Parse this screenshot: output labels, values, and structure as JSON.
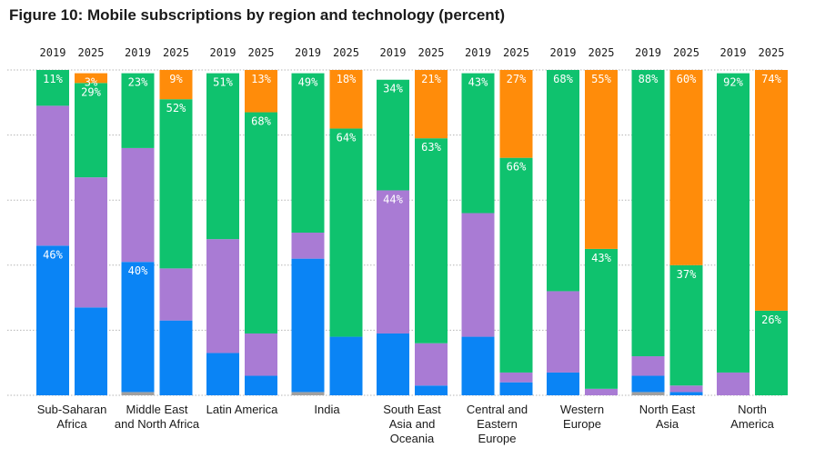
{
  "chart_data": {
    "type": "bar",
    "stacked": true,
    "title": "Figure 10: Mobile subscriptions by region and technology (percent)",
    "ylim": [
      0,
      100
    ],
    "grid": true,
    "legend": "none",
    "stack_order_bottom_to_top": [
      "grey",
      "blue",
      "purple",
      "green",
      "orange"
    ],
    "colors": {
      "grey": "#a0a0a0",
      "blue": "#0a84f5",
      "purple": "#a97bd4",
      "green": "#0fc26e",
      "orange": "#ff8c0a"
    },
    "regions": [
      {
        "label_lines": [
          "Sub-Saharan",
          "Africa"
        ],
        "bars": [
          {
            "year": "2019",
            "segments": [
              {
                "tech": "blue",
                "value": 46,
                "label": "46%"
              },
              {
                "tech": "purple",
                "value": 43
              },
              {
                "tech": "green",
                "value": 11,
                "label": "11%"
              }
            ]
          },
          {
            "year": "2025",
            "segments": [
              {
                "tech": "blue",
                "value": 27
              },
              {
                "tech": "purple",
                "value": 40
              },
              {
                "tech": "green",
                "value": 29,
                "label": "29%"
              },
              {
                "tech": "orange",
                "value": 3,
                "label": "3%"
              }
            ]
          }
        ]
      },
      {
        "label_lines": [
          "Middle East",
          "and North Africa"
        ],
        "bars": [
          {
            "year": "2019",
            "segments": [
              {
                "tech": "grey",
                "value": 1
              },
              {
                "tech": "blue",
                "value": 40,
                "label": "40%"
              },
              {
                "tech": "purple",
                "value": 35
              },
              {
                "tech": "green",
                "value": 23,
                "label": "23%"
              }
            ]
          },
          {
            "year": "2025",
            "segments": [
              {
                "tech": "blue",
                "value": 23
              },
              {
                "tech": "purple",
                "value": 16
              },
              {
                "tech": "green",
                "value": 52,
                "label": "52%"
              },
              {
                "tech": "orange",
                "value": 9,
                "label": "9%"
              }
            ]
          }
        ]
      },
      {
        "label_lines": [
          "Latin America"
        ],
        "bars": [
          {
            "year": "2019",
            "segments": [
              {
                "tech": "blue",
                "value": 13
              },
              {
                "tech": "purple",
                "value": 35
              },
              {
                "tech": "green",
                "value": 51,
                "label": "51%"
              }
            ]
          },
          {
            "year": "2025",
            "segments": [
              {
                "tech": "blue",
                "value": 6
              },
              {
                "tech": "purple",
                "value": 13
              },
              {
                "tech": "green",
                "value": 68,
                "label": "68%"
              },
              {
                "tech": "orange",
                "value": 13,
                "label": "13%"
              }
            ]
          }
        ]
      },
      {
        "label_lines": [
          "India"
        ],
        "bars": [
          {
            "year": "2019",
            "segments": [
              {
                "tech": "grey",
                "value": 1
              },
              {
                "tech": "blue",
                "value": 41
              },
              {
                "tech": "purple",
                "value": 8
              },
              {
                "tech": "green",
                "value": 49,
                "label": "49%"
              }
            ]
          },
          {
            "year": "2025",
            "segments": [
              {
                "tech": "blue",
                "value": 18
              },
              {
                "tech": "green",
                "value": 64,
                "label": "64%"
              },
              {
                "tech": "orange",
                "value": 18,
                "label": "18%"
              }
            ]
          }
        ]
      },
      {
        "label_lines": [
          "South East",
          "Asia and",
          "Oceania"
        ],
        "bars": [
          {
            "year": "2019",
            "segments": [
              {
                "tech": "blue",
                "value": 19
              },
              {
                "tech": "purple",
                "value": 44,
                "label": "44%"
              },
              {
                "tech": "green",
                "value": 34,
                "label": "34%"
              }
            ]
          },
          {
            "year": "2025",
            "segments": [
              {
                "tech": "blue",
                "value": 3
              },
              {
                "tech": "purple",
                "value": 13
              },
              {
                "tech": "green",
                "value": 63,
                "label": "63%"
              },
              {
                "tech": "orange",
                "value": 21,
                "label": "21%"
              }
            ]
          }
        ]
      },
      {
        "label_lines": [
          "Central and",
          "Eastern",
          "Europe"
        ],
        "bars": [
          {
            "year": "2019",
            "segments": [
              {
                "tech": "blue",
                "value": 18
              },
              {
                "tech": "purple",
                "value": 38
              },
              {
                "tech": "green",
                "value": 43,
                "label": "43%"
              }
            ]
          },
          {
            "year": "2025",
            "segments": [
              {
                "tech": "blue",
                "value": 4
              },
              {
                "tech": "purple",
                "value": 3
              },
              {
                "tech": "green",
                "value": 66,
                "label": "66%"
              },
              {
                "tech": "orange",
                "value": 27,
                "label": "27%"
              }
            ]
          }
        ]
      },
      {
        "label_lines": [
          "Western",
          "Europe"
        ],
        "bars": [
          {
            "year": "2019",
            "segments": [
              {
                "tech": "blue",
                "value": 7
              },
              {
                "tech": "purple",
                "value": 25
              },
              {
                "tech": "green",
                "value": 68,
                "label": "68%"
              }
            ]
          },
          {
            "year": "2025",
            "segments": [
              {
                "tech": "purple",
                "value": 2
              },
              {
                "tech": "green",
                "value": 43,
                "label": "43%"
              },
              {
                "tech": "orange",
                "value": 55,
                "label": "55%"
              }
            ]
          }
        ]
      },
      {
        "label_lines": [
          "North East",
          "Asia"
        ],
        "bars": [
          {
            "year": "2019",
            "segments": [
              {
                "tech": "grey",
                "value": 1
              },
              {
                "tech": "blue",
                "value": 5
              },
              {
                "tech": "purple",
                "value": 6
              },
              {
                "tech": "green",
                "value": 88,
                "label": "88%"
              }
            ]
          },
          {
            "year": "2025",
            "segments": [
              {
                "tech": "blue",
                "value": 1
              },
              {
                "tech": "purple",
                "value": 2
              },
              {
                "tech": "green",
                "value": 37,
                "label": "37%"
              },
              {
                "tech": "orange",
                "value": 60,
                "label": "60%"
              }
            ]
          }
        ]
      },
      {
        "label_lines": [
          "North",
          "America"
        ],
        "bars": [
          {
            "year": "2019",
            "segments": [
              {
                "tech": "purple",
                "value": 7
              },
              {
                "tech": "green",
                "value": 92,
                "label": "92%"
              }
            ]
          },
          {
            "year": "2025",
            "segments": [
              {
                "tech": "green",
                "value": 26,
                "label": "26%"
              },
              {
                "tech": "orange",
                "value": 74,
                "label": "74%"
              }
            ]
          }
        ]
      }
    ]
  }
}
